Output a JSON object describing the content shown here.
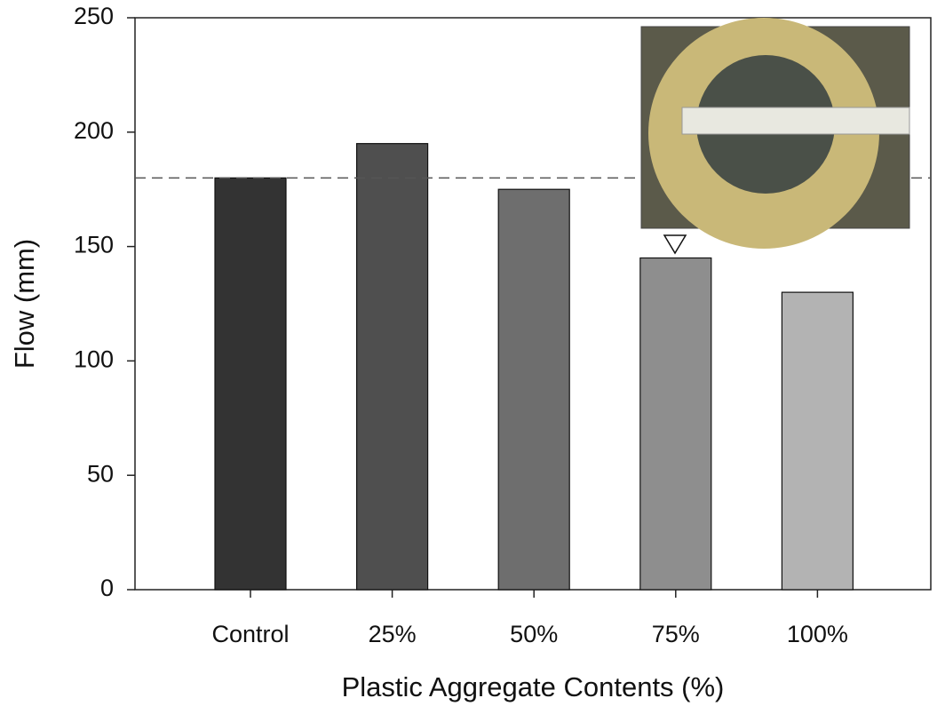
{
  "chart_data": {
    "type": "bar",
    "x_label": "Plastic Aggregate Contents (%)",
    "y_label": "Flow (mm)",
    "categories": [
      "Control",
      "25%",
      "50%",
      "75%",
      "100%"
    ],
    "values": [
      180,
      195,
      175,
      145,
      130
    ],
    "colors": [
      "#333333",
      "#4f4f4f",
      "#6e6e6e",
      "#8e8e8e",
      "#b3b3b3"
    ],
    "ylim": [
      0,
      250
    ],
    "yticks": [
      0,
      50,
      100,
      150,
      200,
      250
    ],
    "reference_line": 180
  }
}
